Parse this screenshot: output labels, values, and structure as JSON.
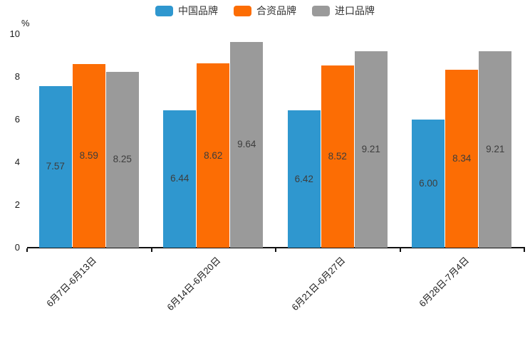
{
  "background_color": "#ffffff",
  "chart_data": {
    "type": "bar",
    "title": "",
    "unit_label": "%",
    "categories": [
      "6月7日-6月13日",
      "6月14日-6月20日",
      "6月21日-6月27日",
      "6月28日-7月4日"
    ],
    "series": [
      {
        "name": "中国品牌",
        "color": "#2F97CF",
        "values": [
          7.57,
          6.44,
          6.42,
          6.0
        ]
      },
      {
        "name": "合资品牌",
        "color": "#FC6D04",
        "values": [
          8.59,
          8.62,
          8.52,
          8.34
        ]
      },
      {
        "name": "进口品牌",
        "color": "#9A9A9A",
        "values": [
          8.25,
          9.64,
          9.21,
          9.21
        ]
      }
    ],
    "value_label_decimals": 2,
    "y_axis": {
      "min": 0,
      "max": 10,
      "ticks": [
        0,
        2,
        4,
        6,
        8,
        10
      ]
    },
    "x_label_rotation_deg": 45,
    "legend_position": "top",
    "grid": false,
    "axis_line_color": "#111111",
    "value_label_color": "#3d3d3d",
    "tick_label_color": "#1a1a1a"
  }
}
